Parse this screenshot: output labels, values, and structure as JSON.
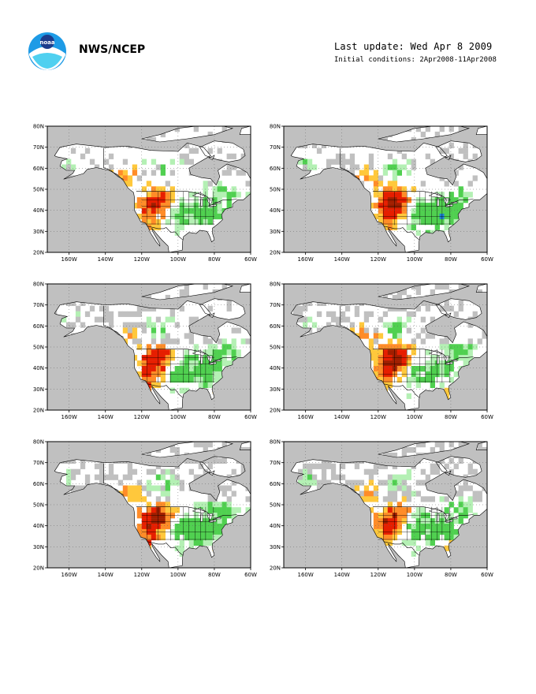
{
  "header": {
    "agency": "NWS/NCEP",
    "last_update": "Last update: Wed Apr 8 2009",
    "initial_conditions": "Initial conditions: 2Apr2008-11Apr2008",
    "logo_text": "noaa"
  },
  "axes": {
    "lat_labels": [
      "80N",
      "70N",
      "60N",
      "50N",
      "40N",
      "30N",
      "20N"
    ],
    "lon_labels": [
      "160W",
      "140W",
      "120W",
      "100W",
      "80W",
      "60W"
    ]
  },
  "colors": {
    "land_no_data": "#c0c0c0",
    "ocean": "#ffffff",
    "wet_light": "#b4f0b4",
    "wet": "#50d050",
    "wet_strong": "#1e82d2",
    "dry_light": "#ffc83c",
    "dry": "#ff8c28",
    "dry_strong": "#e61e00",
    "dry_extreme": "#a01e00"
  },
  "panels": [
    {
      "id": "panel-1"
    },
    {
      "id": "panel-2"
    },
    {
      "id": "panel-3"
    },
    {
      "id": "panel-4"
    },
    {
      "id": "panel-5"
    },
    {
      "id": "panel-6"
    }
  ]
}
